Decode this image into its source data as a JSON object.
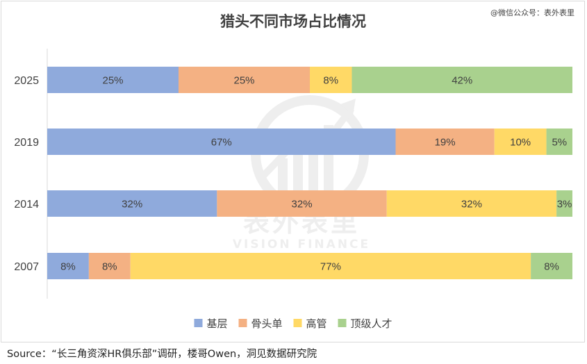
{
  "chart_data": {
    "type": "bar",
    "orientation": "horizontal",
    "stacked": true,
    "title": "猎头不同市场占比情况",
    "credit": "@微信公众号：表外表里",
    "categories": [
      "2025",
      "2019",
      "2014",
      "2007"
    ],
    "series": [
      {
        "name": "基层",
        "color": "#8faadc",
        "values": [
          25,
          67,
          32,
          8
        ],
        "labels": [
          "25%",
          "67%",
          "32%",
          "8%"
        ]
      },
      {
        "name": "骨头单",
        "color": "#f4b183",
        "values": [
          25,
          19,
          32,
          8
        ],
        "labels": [
          "25%",
          "19%",
          "32%",
          "8%"
        ]
      },
      {
        "name": "高管",
        "color": "#ffd966",
        "values": [
          8,
          10,
          32,
          77
        ],
        "labels": [
          "8%",
          "10%",
          "32%",
          "77%"
        ]
      },
      {
        "name": "顶级人才",
        "color": "#a9d18e",
        "values": [
          42,
          5,
          3,
          8
        ],
        "labels": [
          "42%",
          "5%",
          "3%",
          "8%"
        ]
      }
    ],
    "xlim": [
      0,
      100
    ],
    "grid": false,
    "legend": "bottom",
    "watermark": {
      "text_cn": "表外表里",
      "text_en": "VISION FINANCE"
    }
  },
  "source_note": "Source：“长三角资深HR俱乐部”调研，楼哥Owen，洞见数据研究院"
}
